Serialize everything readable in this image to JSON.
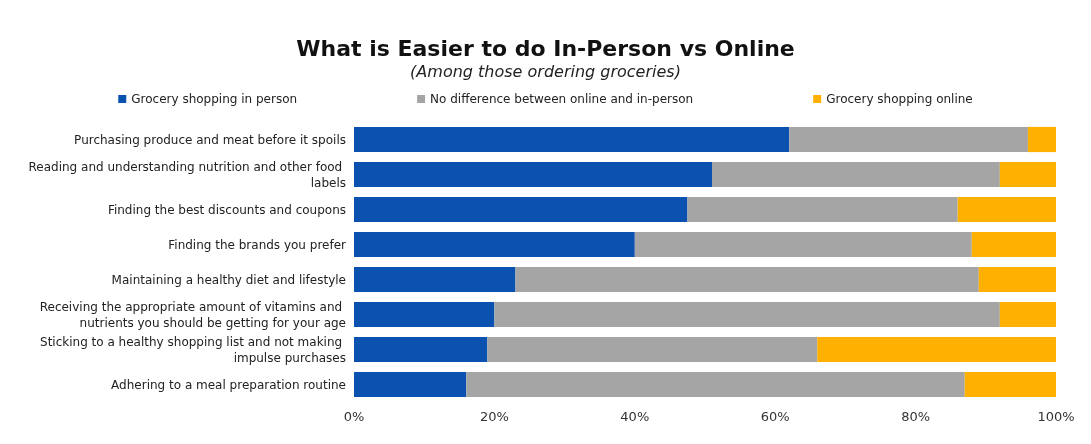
{
  "chart_data": {
    "type": "bar",
    "orientation": "horizontal",
    "stacked": true,
    "title": "What is Easier to do In-Person vs Online",
    "subtitle": "(Among those ordering groceries)",
    "categories": [
      "Purchasing produce and meat before it spoils",
      "Reading and understanding nutrition and other food labels",
      "Finding the best discounts and coupons",
      "Finding the brands you prefer",
      "Maintaining a healthy diet and lifestyle",
      "Receiving the appropriate amount of vitamins and nutrients you should be getting for your age",
      "Sticking to a healthy shopping list and not making impulse purchases",
      "Adhering to a meal preparation routine"
    ],
    "series": [
      {
        "name": "Grocery shopping in person",
        "color": "#0b52b0",
        "values": [
          62,
          51,
          47.5,
          40,
          23,
          20,
          19,
          16
        ]
      },
      {
        "name": "No difference between online and in-person",
        "color": "#a5a5a5",
        "values": [
          34,
          41,
          38.5,
          48,
          66,
          72,
          47,
          71
        ]
      },
      {
        "name": "Grocery shopping online",
        "color": "#ffb000",
        "values": [
          4,
          8,
          14,
          12,
          11,
          8,
          34,
          13
        ]
      }
    ],
    "xlim": [
      0,
      100
    ],
    "xticks": [
      {
        "value": 0,
        "label": "0%"
      },
      {
        "value": 20,
        "label": "20%"
      },
      {
        "value": 40,
        "label": "40%"
      },
      {
        "value": 60,
        "label": "60%"
      },
      {
        "value": 80,
        "label": "80%"
      },
      {
        "value": 100,
        "label": "100%"
      }
    ],
    "grid": false,
    "legend": "top"
  }
}
